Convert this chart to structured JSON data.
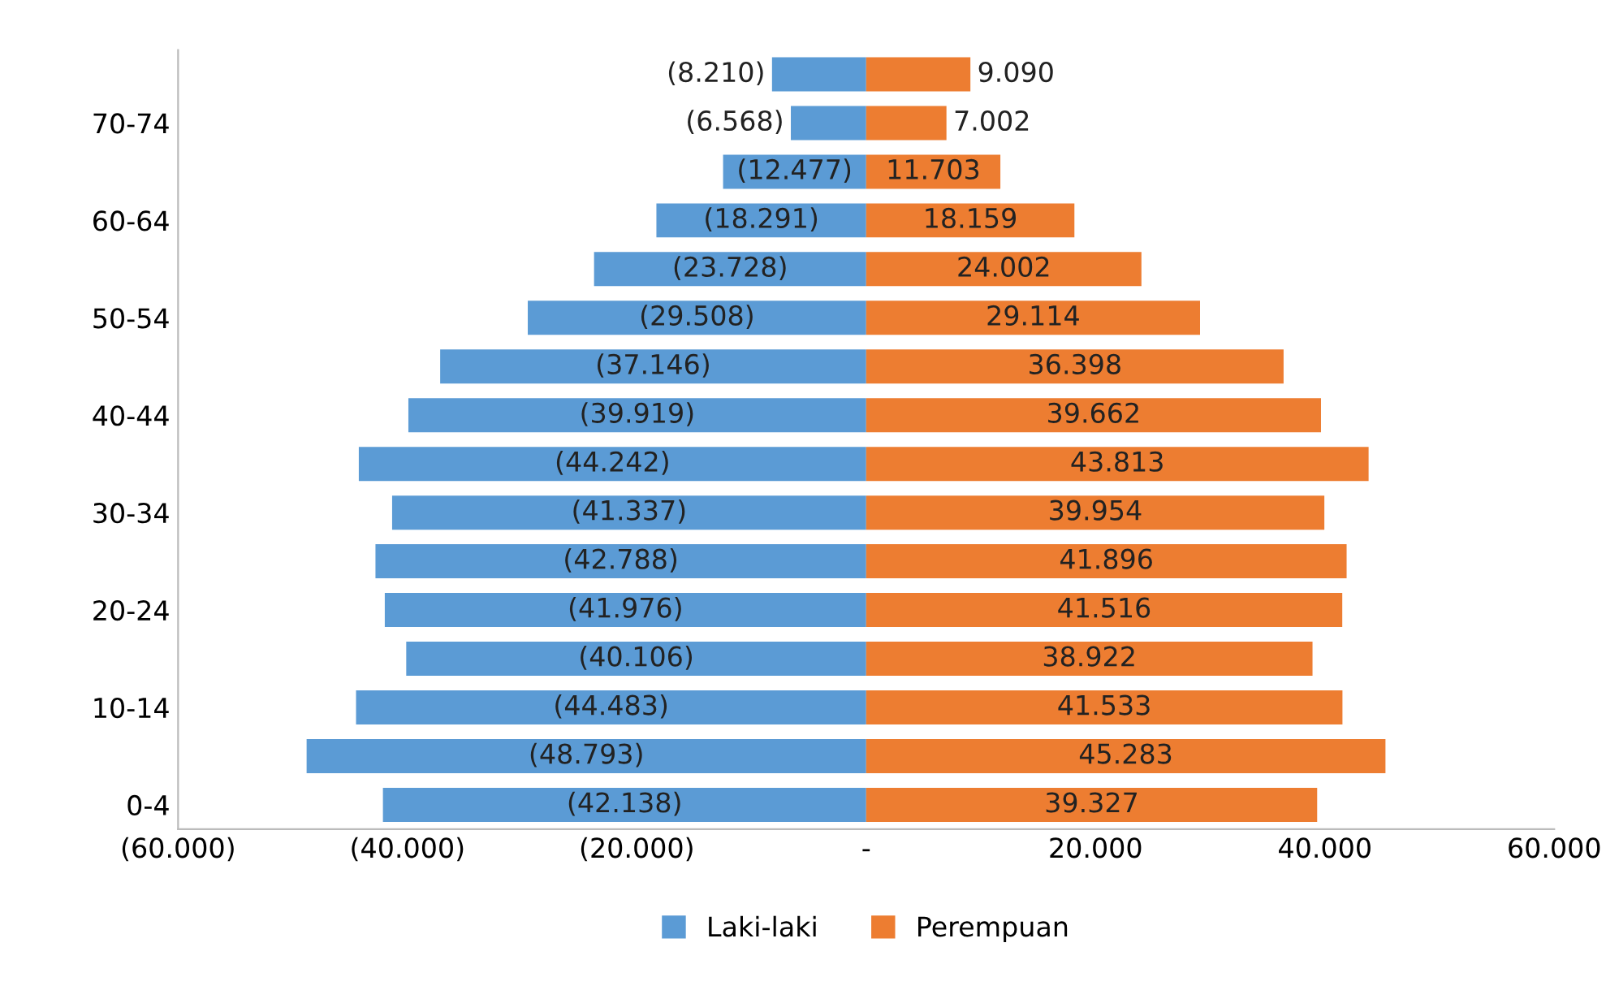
{
  "chart_data": {
    "type": "bar",
    "orientation": "horizontal",
    "stacked": true,
    "categories": [
      null,
      "70-74",
      null,
      "60-64",
      null,
      "50-54",
      null,
      "40-44",
      null,
      "30-34",
      null,
      "20-24",
      null,
      "10-14",
      null,
      "0-4"
    ],
    "series": [
      {
        "name": "Laki-laki",
        "color": "#5b9bd5",
        "values": [
          -8210,
          -6568,
          -12477,
          -18291,
          -23728,
          -29508,
          -37146,
          -39919,
          -44242,
          -41337,
          -42788,
          -41976,
          -40106,
          -44483,
          -48793,
          -42138
        ],
        "value_labels": [
          "(8.210)",
          "(6.568)",
          "(12.477)",
          "(18.291)",
          "(23.728)",
          "(29.508)",
          "(37.146)",
          "(39.919)",
          "(44.242)",
          "(41.337)",
          "(42.788)",
          "(41.976)",
          "(40.106)",
          "(44.483)",
          "(48.793)",
          "(42.138)"
        ]
      },
      {
        "name": "Perempuan",
        "color": "#ed7d31",
        "values": [
          9090,
          7002,
          11703,
          18159,
          24002,
          29114,
          36398,
          39662,
          43813,
          39954,
          41896,
          41516,
          38922,
          41533,
          45283,
          39327
        ],
        "value_labels": [
          "9.090",
          "7.002",
          "11.703",
          "18.159",
          "24.002",
          "29.114",
          "36.398",
          "39.662",
          "43.813",
          "39.954",
          "41.896",
          "41.516",
          "38.922",
          "41.533",
          "45.283",
          "39.327"
        ]
      }
    ],
    "xlim": [
      -60000,
      60000
    ],
    "xticks": [
      {
        "value": -60000,
        "label": "(60.000)"
      },
      {
        "value": -40000,
        "label": "(40.000)"
      },
      {
        "value": -20000,
        "label": "(20.000)"
      },
      {
        "value": 0,
        "label": "-"
      },
      {
        "value": 20000,
        "label": "20.000"
      },
      {
        "value": 40000,
        "label": "40.000"
      },
      {
        "value": 60000,
        "label": "60.000"
      }
    ],
    "grid": false,
    "legend": "bottom"
  }
}
